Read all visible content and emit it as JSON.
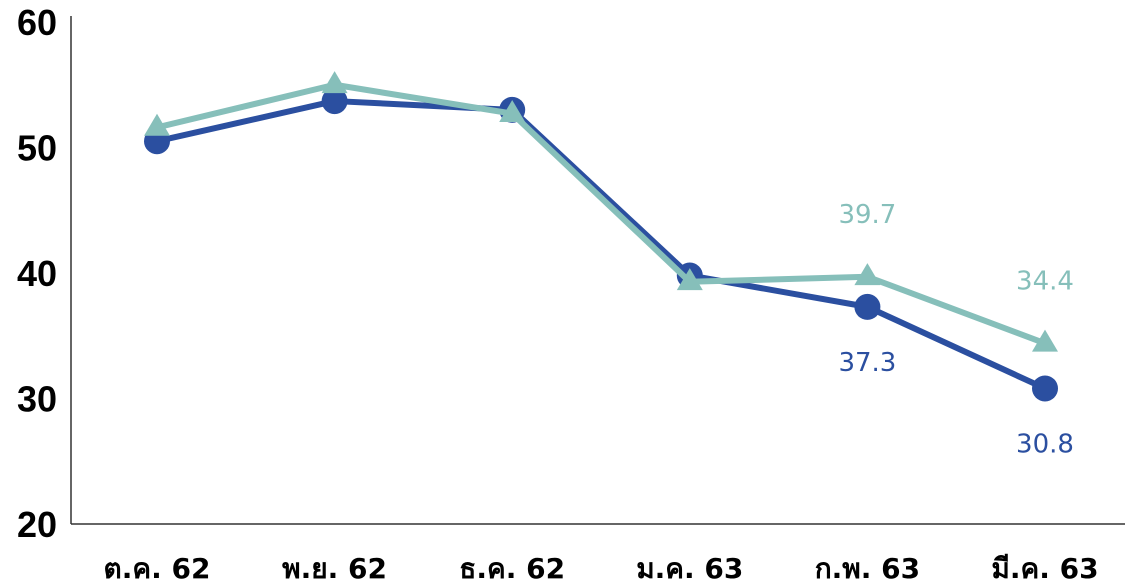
{
  "chart_data": {
    "type": "line",
    "title": "",
    "xlabel": "",
    "ylabel": "",
    "categories": [
      "ต.ค. 62",
      "พ.ย. 62",
      "ธ.ค. 62",
      "ม.ค. 63",
      "ก.พ. 63",
      "มี.ค. 63"
    ],
    "ylim": [
      20,
      60
    ],
    "yticks": [
      20,
      30,
      40,
      50,
      60
    ],
    "grid": false,
    "legend": "none",
    "series": [
      {
        "color": "#2b4fa0",
        "marker": "circle",
        "values": [
          50.5,
          53.7,
          53.0,
          39.8,
          37.3,
          30.8
        ],
        "labels": [
          null,
          null,
          null,
          null,
          "37.3",
          "30.8"
        ]
      },
      {
        "color": "#86bfba",
        "marker": "triangle",
        "values": [
          51.6,
          55.0,
          52.7,
          39.3,
          39.7,
          34.4
        ],
        "labels": [
          null,
          null,
          null,
          null,
          "39.7",
          "34.4"
        ]
      }
    ]
  }
}
